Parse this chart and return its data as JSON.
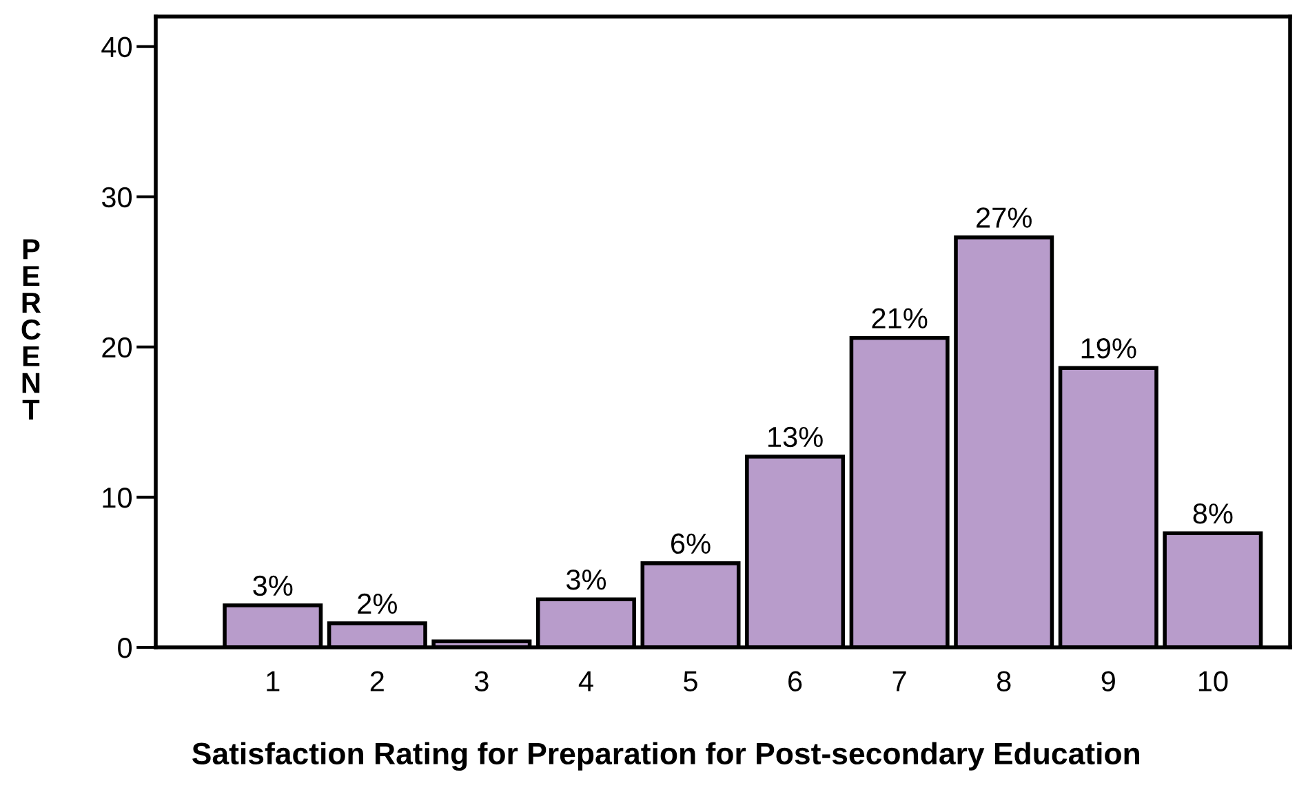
{
  "chart_data": {
    "type": "bar",
    "xlabel": "Satisfaction Rating for Preparation for Post-secondary Education",
    "ylabel": "PERCENT",
    "categories": [
      "1",
      "2",
      "3",
      "4",
      "5",
      "6",
      "7",
      "8",
      "9",
      "10"
    ],
    "values": [
      2.8,
      1.6,
      0.4,
      3.2,
      5.6,
      12.7,
      20.6,
      27.3,
      18.6,
      7.6
    ],
    "value_labels": [
      "3%",
      "2%",
      null,
      "3%",
      "6%",
      "13%",
      "21%",
      "27%",
      "19%",
      "8%"
    ],
    "color": "#b89ccb",
    "ylim": [
      0,
      42
    ],
    "yticks": [
      0,
      10,
      20,
      30,
      40
    ],
    "grid": false,
    "legend": false
  }
}
